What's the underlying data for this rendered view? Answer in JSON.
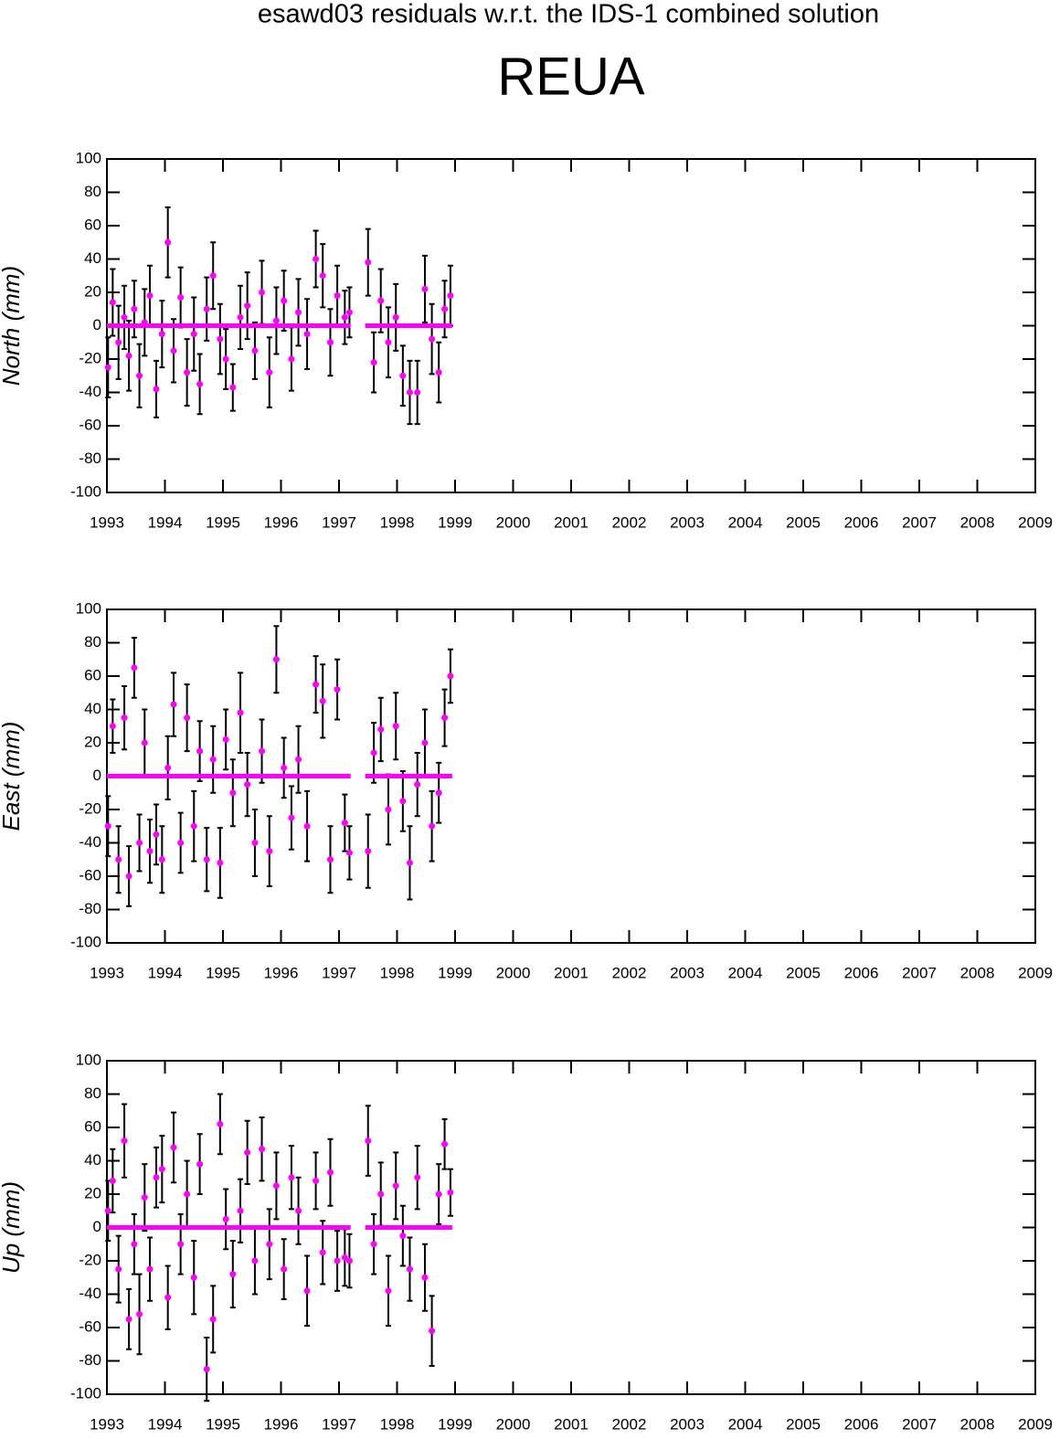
{
  "header": {
    "title": "esawd03 residuals w.r.t. the IDS-1 combined solution",
    "subtitle": "REUA"
  },
  "chart_data": [
    {
      "type": "scatter",
      "ylabel": "North (mm)",
      "xlim": [
        1993,
        2009
      ],
      "xticks": [
        1993,
        1994,
        1995,
        1996,
        1997,
        1998,
        1999,
        2000,
        2001,
        2002,
        2003,
        2004,
        2005,
        2006,
        2007,
        2008,
        2009
      ],
      "ylim": [
        -100,
        100
      ],
      "yticks": [
        -100,
        -80,
        -60,
        -40,
        -20,
        0,
        20,
        40,
        60,
        80,
        100
      ],
      "x": [
        1993.02,
        1993.1,
        1993.2,
        1993.3,
        1993.38,
        1993.47,
        1993.56,
        1993.65,
        1993.74,
        1993.85,
        1993.95,
        1994.05,
        1994.15,
        1994.27,
        1994.38,
        1994.5,
        1994.6,
        1994.72,
        1994.83,
        1994.95,
        1995.05,
        1995.17,
        1995.3,
        1995.42,
        1995.55,
        1995.67,
        1995.8,
        1995.92,
        1996.05,
        1996.18,
        1996.3,
        1996.45,
        1996.6,
        1996.72,
        1996.85,
        1996.97,
        1997.1,
        1997.18,
        1997.5,
        1997.6,
        1997.72,
        1997.85,
        1997.98,
        1998.1,
        1998.22,
        1998.35,
        1998.48,
        1998.6,
        1998.72,
        1998.82,
        1998.92
      ],
      "series": [
        {
          "color": "#ff00ff",
          "values": [
            -25,
            14,
            -10,
            5,
            -18,
            10,
            -30,
            2,
            18,
            -38,
            -5,
            50,
            -15,
            17,
            -28,
            -5,
            -35,
            10,
            30,
            -8,
            -20,
            -37,
            5,
            12,
            -15,
            20,
            -28,
            3,
            15,
            -20,
            8,
            -5,
            40,
            30,
            -10,
            18,
            5,
            8,
            38,
            -22,
            15,
            -10,
            5,
            -30,
            -40,
            -40,
            22,
            -8,
            -28,
            10,
            18
          ],
          "errors": [
            18,
            20,
            22,
            19,
            21,
            17,
            19,
            20,
            18,
            17,
            20,
            21,
            19,
            18,
            20,
            22,
            18,
            19,
            20,
            21,
            18,
            14,
            19,
            20,
            17,
            19,
            21,
            20,
            18,
            19,
            20,
            21,
            17,
            19,
            20,
            18,
            16,
            15,
            20,
            18,
            19,
            21,
            20,
            18,
            19,
            19,
            20,
            21,
            18,
            17,
            18
          ]
        },
        {
          "color": "#ff00ff",
          "x": [
            1993.0,
            1997.2,
            null,
            1997.45,
            1998.95
          ],
          "values": [
            0,
            0,
            null,
            0,
            0
          ]
        }
      ]
    },
    {
      "type": "scatter",
      "ylabel": "East (mm)",
      "xlim": [
        1993,
        2009
      ],
      "xticks": [
        1993,
        1994,
        1995,
        1996,
        1997,
        1998,
        1999,
        2000,
        2001,
        2002,
        2003,
        2004,
        2005,
        2006,
        2007,
        2008,
        2009
      ],
      "ylim": [
        -100,
        100
      ],
      "yticks": [
        -100,
        -80,
        -60,
        -40,
        -20,
        0,
        20,
        40,
        60,
        80,
        100
      ],
      "x": [
        1993.02,
        1993.1,
        1993.2,
        1993.3,
        1993.38,
        1993.47,
        1993.56,
        1993.65,
        1993.74,
        1993.85,
        1993.95,
        1994.05,
        1994.15,
        1994.27,
        1994.38,
        1994.5,
        1994.6,
        1994.72,
        1994.83,
        1994.95,
        1995.05,
        1995.17,
        1995.3,
        1995.42,
        1995.55,
        1995.67,
        1995.8,
        1995.92,
        1996.05,
        1996.18,
        1996.3,
        1996.45,
        1996.6,
        1996.72,
        1996.85,
        1996.97,
        1997.1,
        1997.18,
        1997.5,
        1997.6,
        1997.72,
        1997.85,
        1997.98,
        1998.1,
        1998.22,
        1998.35,
        1998.48,
        1998.6,
        1998.72,
        1998.82,
        1998.92
      ],
      "series": [
        {
          "color": "#ff00ff",
          "values": [
            -30,
            30,
            -50,
            35,
            -60,
            65,
            -40,
            20,
            -45,
            -35,
            -50,
            5,
            43,
            -40,
            35,
            -30,
            15,
            -50,
            10,
            -52,
            22,
            -10,
            38,
            -5,
            -40,
            15,
            -45,
            70,
            5,
            -25,
            10,
            -30,
            55,
            45,
            -50,
            52,
            -28,
            -46,
            -45,
            14,
            28,
            -20,
            30,
            -15,
            -52,
            -5,
            20,
            -30,
            -10,
            35,
            60
          ],
          "errors": [
            18,
            16,
            20,
            19,
            18,
            18,
            17,
            20,
            19,
            18,
            20,
            19,
            19,
            18,
            20,
            21,
            18,
            19,
            20,
            21,
            18,
            20,
            24,
            19,
            20,
            19,
            21,
            20,
            18,
            19,
            20,
            21,
            17,
            22,
            20,
            18,
            17,
            16,
            22,
            18,
            19,
            21,
            20,
            18,
            22,
            19,
            20,
            21,
            18,
            17,
            16
          ]
        },
        {
          "color": "#ff00ff",
          "x": [
            1993.0,
            1997.2,
            null,
            1997.45,
            1998.95
          ],
          "values": [
            0,
            0,
            null,
            0,
            0
          ]
        }
      ]
    },
    {
      "type": "scatter",
      "ylabel": "Up (mm)",
      "xlim": [
        1993,
        2009
      ],
      "xticks": [
        1993,
        1994,
        1995,
        1996,
        1997,
        1998,
        1999,
        2000,
        2001,
        2002,
        2003,
        2004,
        2005,
        2006,
        2007,
        2008,
        2009
      ],
      "ylim": [
        -100,
        100
      ],
      "yticks": [
        -100,
        -80,
        -60,
        -40,
        -20,
        0,
        20,
        40,
        60,
        80,
        100
      ],
      "x": [
        1993.02,
        1993.1,
        1993.2,
        1993.3,
        1993.38,
        1993.47,
        1993.56,
        1993.65,
        1993.74,
        1993.85,
        1993.95,
        1994.05,
        1994.15,
        1994.27,
        1994.38,
        1994.5,
        1994.6,
        1994.72,
        1994.83,
        1994.95,
        1995.05,
        1995.17,
        1995.3,
        1995.42,
        1995.55,
        1995.67,
        1995.8,
        1995.92,
        1996.05,
        1996.18,
        1996.3,
        1996.45,
        1996.6,
        1996.72,
        1996.85,
        1996.97,
        1997.1,
        1997.18,
        1997.5,
        1997.6,
        1997.72,
        1997.85,
        1997.98,
        1998.1,
        1998.22,
        1998.35,
        1998.48,
        1998.6,
        1998.72,
        1998.82,
        1998.92
      ],
      "series": [
        {
          "color": "#ff00ff",
          "values": [
            10,
            28,
            -25,
            52,
            -55,
            -10,
            -52,
            18,
            -25,
            30,
            35,
            -42,
            48,
            -10,
            20,
            -30,
            38,
            -85,
            -55,
            62,
            5,
            -28,
            10,
            45,
            -20,
            47,
            -10,
            25,
            -25,
            30,
            10,
            -38,
            28,
            -15,
            33,
            -20,
            -18,
            -20,
            52,
            -10,
            20,
            -38,
            25,
            -5,
            -25,
            30,
            -30,
            -62,
            20,
            50,
            21
          ],
          "errors": [
            18,
            19,
            20,
            22,
            18,
            18,
            24,
            20,
            19,
            18,
            20,
            19,
            21,
            18,
            20,
            22,
            18,
            19,
            20,
            18,
            18,
            20,
            19,
            19,
            20,
            19,
            21,
            20,
            18,
            19,
            20,
            21,
            17,
            19,
            20,
            18,
            17,
            16,
            21,
            18,
            19,
            21,
            20,
            18,
            19,
            19,
            20,
            21,
            18,
            15,
            14
          ]
        },
        {
          "color": "#ff00ff",
          "x": [
            1993.0,
            1997.2,
            null,
            1997.45,
            1998.95
          ],
          "values": [
            0,
            0,
            null,
            0,
            0
          ]
        }
      ]
    }
  ]
}
